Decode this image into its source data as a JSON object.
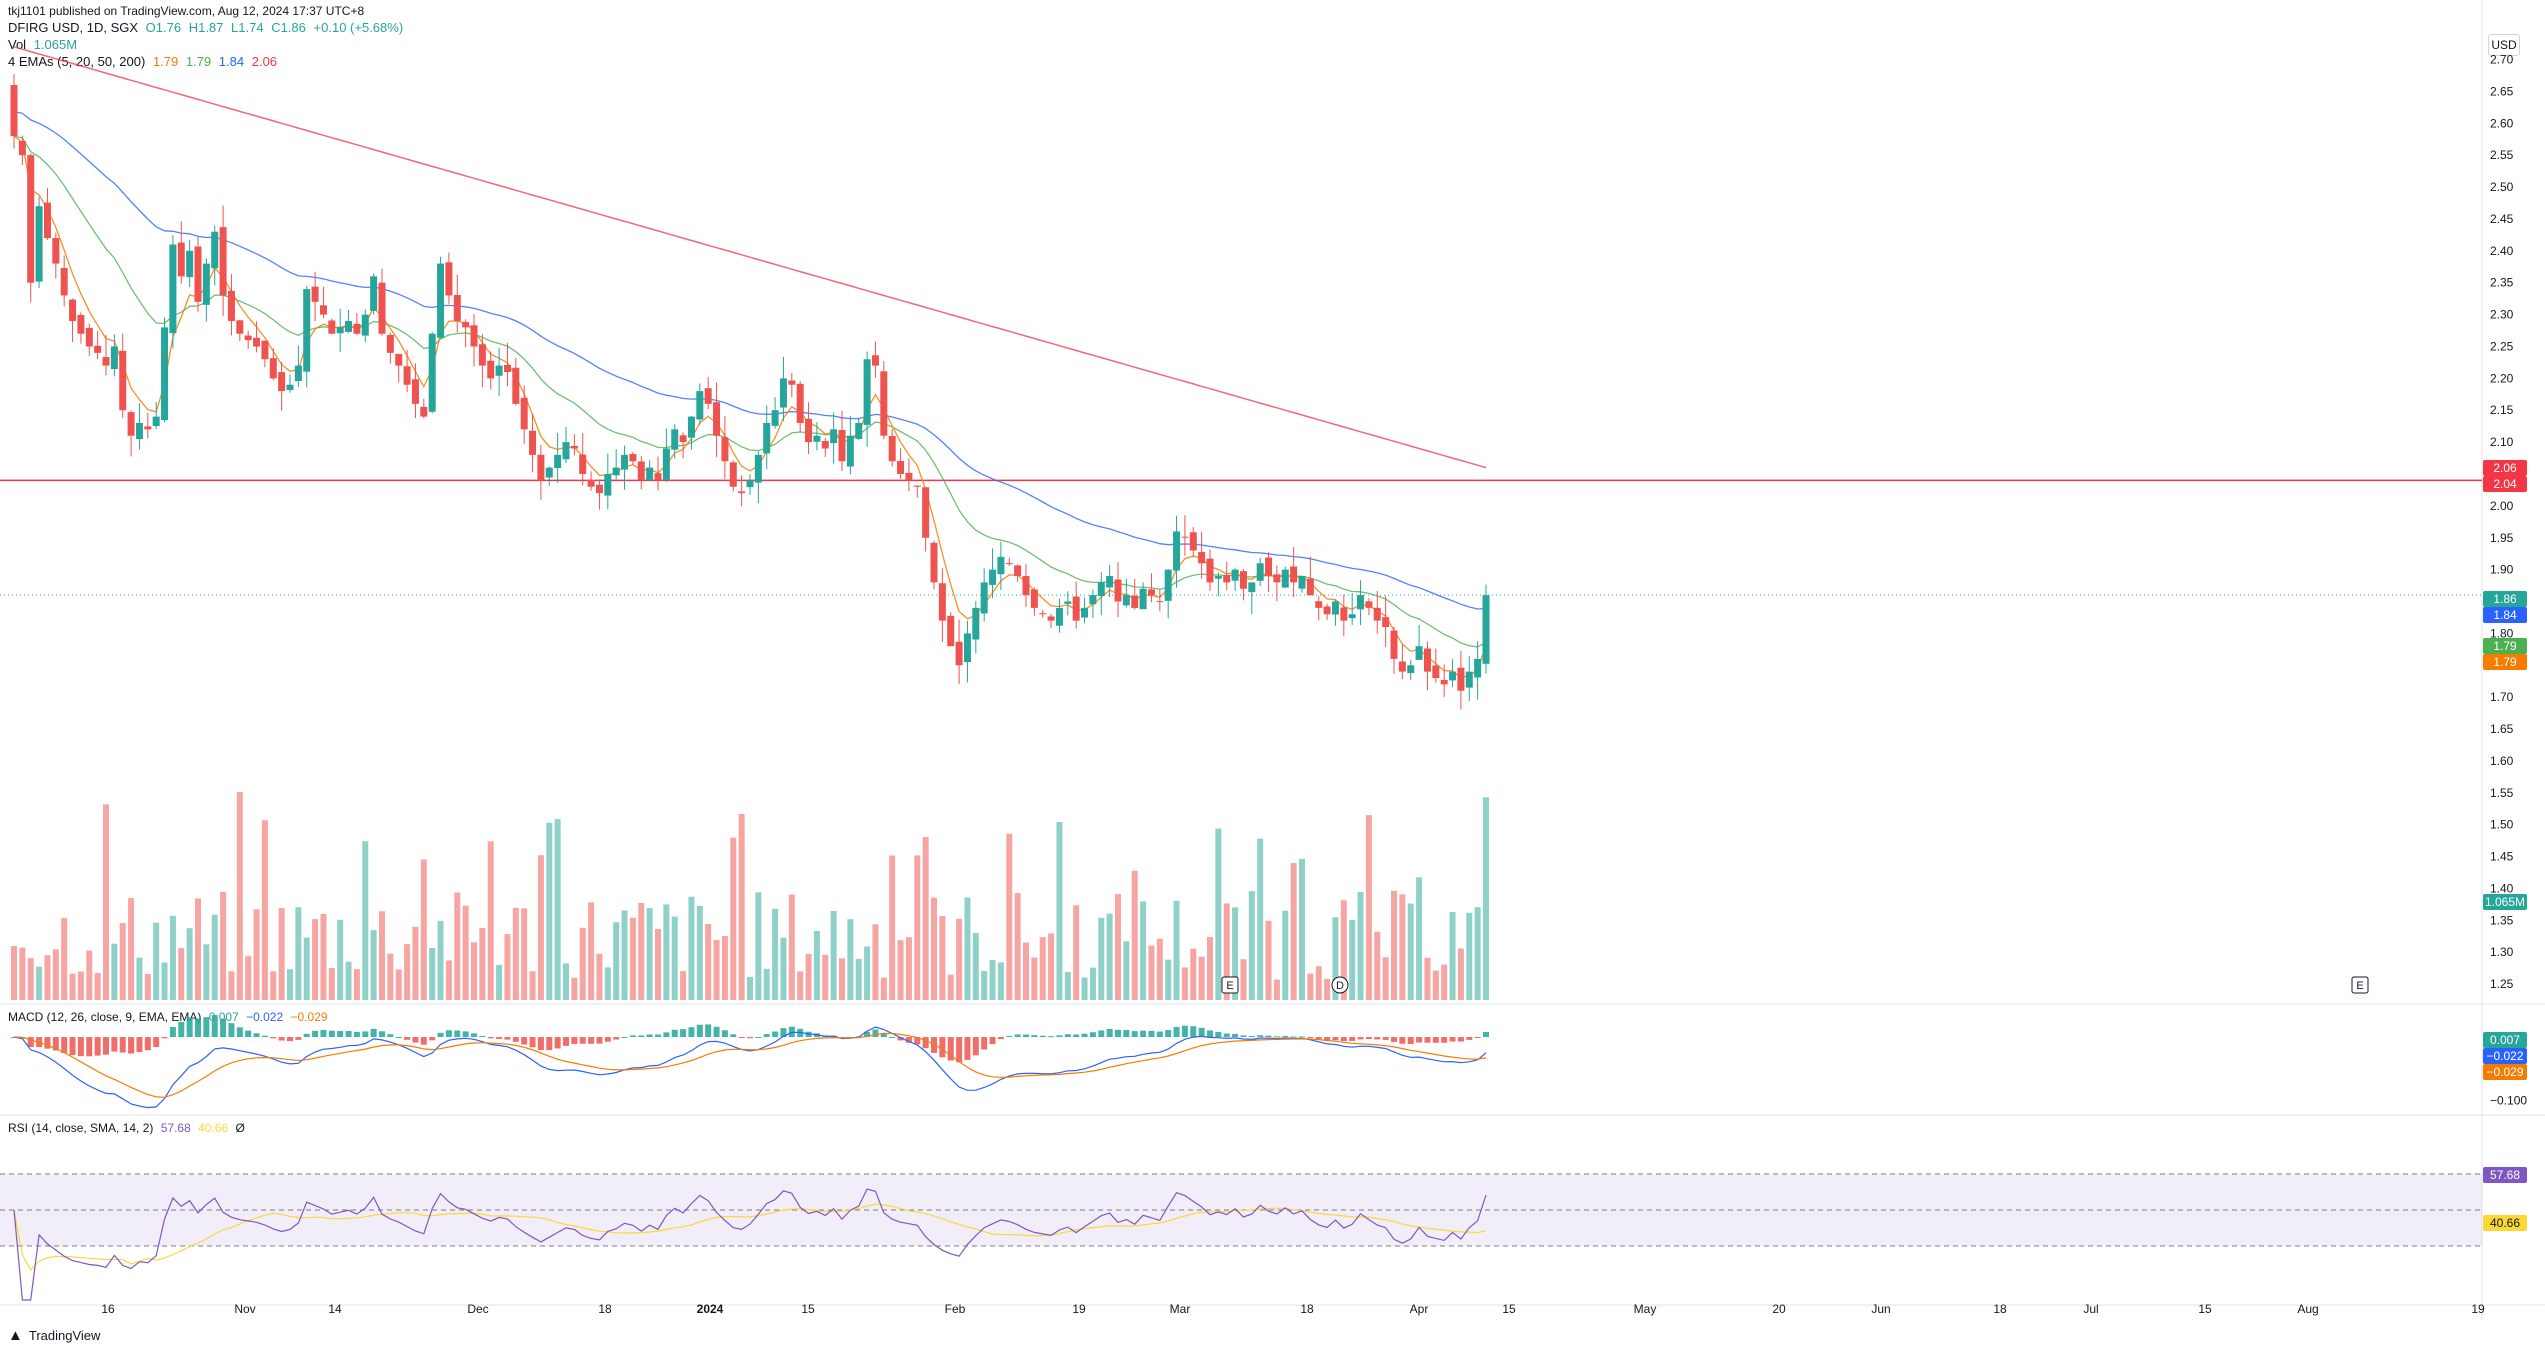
{
  "publisher": "tkj1101 published on TradingView.com, Aug 12, 2024 17:37 UTC+8",
  "legend": {
    "symbol": "DFIRG USD, 1D, SGX",
    "open": "O1.76",
    "high": "H1.87",
    "low": "L1.74",
    "close": "C1.86",
    "change": "+0.10 (+5.68%)",
    "vol_label": "Vol",
    "vol_value": "1.065M",
    "ema_label": "4 EMAs (5, 20, 50, 200)",
    "ema_values": [
      "1.79",
      "1.79",
      "1.84",
      "2.06"
    ],
    "macd_label": "MACD (12, 26, close, 9, EMA, EMA)",
    "macd_values": [
      "0.007",
      "−0.022",
      "−0.029"
    ],
    "rsi_label": "RSI (14, close, SMA, 14, 2)",
    "rsi_values": [
      "57.68",
      "40.66",
      "Ø"
    ]
  },
  "currency_button": "USD",
  "footer_brand": "TradingView",
  "colors": {
    "up": "#26a69a",
    "down": "#ef5350",
    "ema5": "#f57c00",
    "ema20": "#4caf50",
    "ema50": "#2962ff",
    "ema200": "#f23645",
    "hline": "#f23645",
    "rsi": "#7e57c2",
    "rsi_ma": "#fdd835"
  },
  "chart_data": {
    "type": "candlestick",
    "x_ticks": [
      "16",
      "Nov",
      "14",
      "Dec",
      "18",
      "2024",
      "15",
      "Feb",
      "19",
      "Mar",
      "18",
      "Apr",
      "15",
      "May",
      "20",
      "Jun",
      "18",
      "Jul",
      "15",
      "Aug",
      "19"
    ],
    "price_axis": {
      "ticks": [
        "2.70",
        "2.65",
        "2.60",
        "2.55",
        "2.50",
        "2.45",
        "2.40",
        "2.35",
        "2.30",
        "2.25",
        "2.20",
        "2.15",
        "2.10",
        "2.05",
        "2.00",
        "1.95",
        "1.90",
        "1.85",
        "1.80",
        "1.75",
        "1.70",
        "1.65",
        "1.60",
        "1.55",
        "1.50",
        "1.45",
        "1.40",
        "1.35",
        "1.30",
        "1.25"
      ],
      "range": [
        1.225,
        2.715
      ]
    },
    "horizontal_line": 2.04,
    "last_price": 1.86,
    "price_tags": [
      {
        "label": "2.06",
        "value": 2.06,
        "color": "#f23645"
      },
      {
        "label": "2.04",
        "value": 2.04,
        "color": "#f23645"
      },
      {
        "label": "1.86",
        "value": 1.86,
        "color": "#26a69a"
      },
      {
        "label": "1.84",
        "value": 1.84,
        "color": "#2962ff"
      },
      {
        "label": "1.79",
        "value": 1.79,
        "color": "#4caf50"
      },
      {
        "label": "1.79",
        "value": 1.79,
        "color": "#f57c00"
      }
    ],
    "volume_tag": "1.065M",
    "macd_axis": {
      "ticks": [
        "−0.100"
      ],
      "range": [
        -0.115,
        0.03
      ]
    },
    "macd_tags": [
      {
        "label": "0.007",
        "value": 0.007,
        "color": "#26a69a"
      },
      {
        "label": "−0.022",
        "value": -0.022,
        "color": "#2962ff"
      },
      {
        "label": "−0.029",
        "value": -0.029,
        "color": "#f57c00"
      }
    ],
    "rsi_axis": {
      "range": [
        0,
        100
      ],
      "upper": 70,
      "middle": 50,
      "lower": 30
    },
    "rsi_tags": [
      {
        "label": "57.68",
        "value": 57.68,
        "color": "#7e57c2"
      },
      {
        "label": "40.66",
        "value": 40.66,
        "color": "#fdd835"
      }
    ],
    "closes": [
      2.58,
      2.55,
      2.35,
      2.47,
      2.42,
      2.38,
      2.33,
      2.29,
      2.27,
      2.25,
      2.24,
      2.22,
      2.25,
      2.15,
      2.11,
      2.13,
      2.12,
      2.14,
      2.28,
      2.41,
      2.36,
      2.4,
      2.32,
      2.38,
      2.43,
      2.33,
      2.29,
      2.27,
      2.26,
      2.25,
      2.23,
      2.2,
      2.18,
      2.19,
      2.22,
      2.34,
      2.32,
      2.3,
      2.27,
      2.28,
      2.29,
      2.27,
      2.3,
      2.36,
      2.27,
      2.24,
      2.22,
      2.19,
      2.16,
      2.14,
      2.27,
      2.38,
      2.33,
      2.29,
      2.28,
      2.25,
      2.22,
      2.2,
      2.22,
      2.21,
      2.16,
      2.12,
      2.08,
      2.04,
      2.06,
      2.08,
      2.1,
      2.09,
      2.05,
      2.03,
      2.02,
      2.05,
      2.06,
      2.08,
      2.07,
      2.04,
      2.06,
      2.04,
      2.09,
      2.12,
      2.1,
      2.14,
      2.18,
      2.16,
      2.11,
      2.07,
      2.03,
      2.02,
      2.04,
      2.08,
      2.13,
      2.15,
      2.2,
      2.19,
      2.13,
      2.1,
      2.11,
      2.09,
      2.12,
      2.07,
      2.11,
      2.13,
      2.23,
      2.22,
      2.11,
      2.07,
      2.05,
      2.04,
      2.03,
      1.95,
      1.88,
      1.82,
      1.78,
      1.75,
      1.8,
      1.84,
      1.88,
      1.9,
      1.92,
      1.91,
      1.89,
      1.86,
      1.84,
      1.83,
      1.82,
      1.84,
      1.85,
      1.82,
      1.84,
      1.86,
      1.88,
      1.89,
      1.85,
      1.86,
      1.84,
      1.87,
      1.86,
      1.85,
      1.9,
      1.96,
      1.95,
      1.93,
      1.91,
      1.88,
      1.89,
      1.88,
      1.9,
      1.87,
      1.88,
      1.91,
      1.89,
      1.88,
      1.9,
      1.88,
      1.89,
      1.86,
      1.84,
      1.83,
      1.85,
      1.82,
      1.83,
      1.86,
      1.84,
      1.82,
      1.81,
      1.76,
      1.74,
      1.75,
      1.78,
      1.74,
      1.73,
      1.72,
      1.74,
      1.71,
      1.74,
      1.76,
      1.86
    ]
  }
}
